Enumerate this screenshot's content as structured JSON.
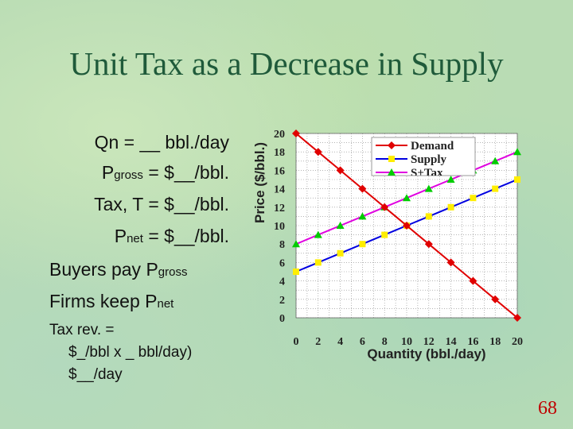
{
  "slide": {
    "title": "Unit Tax as a Decrease in Supply",
    "page_number": "68",
    "lines": {
      "qn": "Qn = __ bbl./day",
      "pgross_p": "P",
      "pgross_sub": "gross",
      "pgross_rest": " = $__/bbl.",
      "tax": "Tax, T = $__/bbl.",
      "pnet_p": "P",
      "pnet_sub": "net",
      "pnet_rest": " = $__/bbl.",
      "buyers_text": "Buyers pay P",
      "buyers_sub": "gross",
      "firms_text": "Firms keep P",
      "firms_sub": "net",
      "taxrev_1": "Tax rev. =",
      "taxrev_2": "$_/bbl x _ bbl/day)",
      "taxrev_3": "$__/day"
    }
  },
  "colors": {
    "demand": "#e00000",
    "supply": "#0000e0",
    "stax": "#e000e0",
    "stax_marker": "#00cc00",
    "title": "#1f5a3a"
  },
  "chart_data": {
    "type": "line",
    "xlabel": "Quantity (bbl./day)",
    "ylabel": "Price ($/bbl.)",
    "xlim": [
      0,
      20
    ],
    "ylim": [
      0,
      20
    ],
    "xticks": [
      0,
      2,
      4,
      6,
      8,
      10,
      12,
      14,
      16,
      18,
      20
    ],
    "yticks": [
      0,
      2,
      4,
      6,
      8,
      10,
      12,
      14,
      16,
      18,
      20
    ],
    "grid": true,
    "legend_position": "top-right",
    "series": [
      {
        "name": "Demand",
        "marker": "diamond",
        "x": [
          0,
          2,
          4,
          6,
          8,
          10,
          12,
          14,
          16,
          18,
          20
        ],
        "values": [
          20,
          18,
          16,
          14,
          12,
          10,
          8,
          6,
          4,
          2,
          0
        ]
      },
      {
        "name": "Supply",
        "marker": "square",
        "x": [
          0,
          2,
          4,
          6,
          8,
          10,
          12,
          14,
          16,
          18,
          20
        ],
        "values": [
          5,
          6,
          7,
          8,
          9,
          10,
          11,
          12,
          13,
          14,
          15
        ]
      },
      {
        "name": "S+Tax",
        "marker": "triangle",
        "x": [
          0,
          2,
          4,
          6,
          8,
          10,
          12,
          14,
          16,
          18,
          20
        ],
        "values": [
          8,
          9,
          10,
          11,
          12,
          13,
          14,
          15,
          16,
          17,
          18
        ]
      }
    ]
  }
}
